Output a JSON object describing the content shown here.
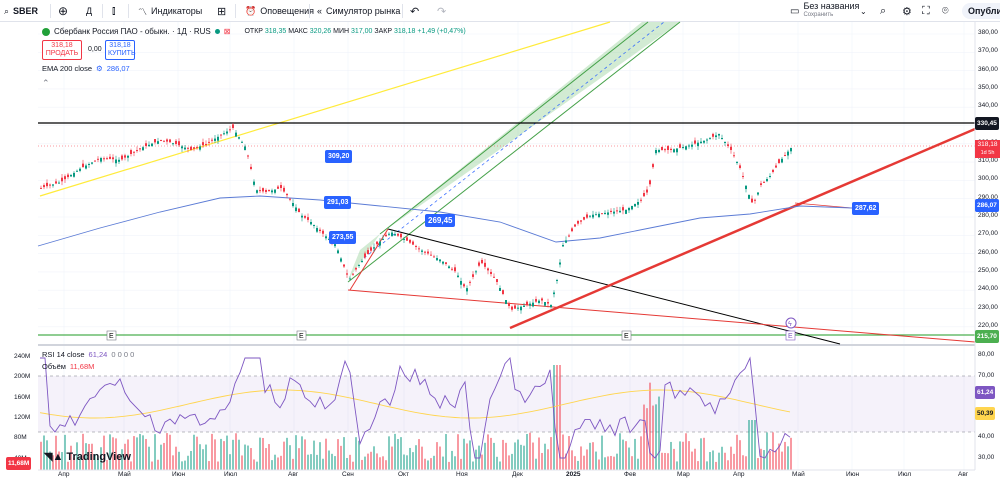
{
  "toolbar": {
    "symbol": "SBER",
    "interval": "Д",
    "indicators": "Индикаторы",
    "alerts": "Оповещения",
    "replay": "Симулятор рынка",
    "layout_name": "Без названия",
    "layout_saved": "Сохранить",
    "publish": "Опубликовать"
  },
  "legend": {
    "title": "Сбербанк Россия ПАО - обыкн. · 1Д · RUS",
    "open_label": "ОТКР",
    "open": "318,35",
    "high_label": "МАКС",
    "high": "320,26",
    "low_label": "МИН",
    "low": "317,00",
    "close_label": "ЗАКР",
    "close": "318,18",
    "change": "+1,49 (+0,47%)",
    "sell_price": "318,18",
    "sell_label": "ПРОДАТЬ",
    "spread": "0,00",
    "buy_price": "318,18",
    "buy_label": "КУПИТЬ",
    "ema_label": "EMA 200 close",
    "ema_value": "286,07"
  },
  "price_axis": {
    "ticks": [
      "380,00",
      "370,00",
      "360,00",
      "350,00",
      "340,00",
      "330,00",
      "320,00",
      "310,00",
      "300,00",
      "290,00",
      "280,00",
      "270,00",
      "260,00",
      "250,00",
      "240,00",
      "230,00",
      "220,00"
    ],
    "hline_label": "330,45",
    "last_price": "318,18",
    "last_time": "1d 5h",
    "ema_tag": "286,07",
    "support_tag": "215,70"
  },
  "annotations": {
    "a1": "309,20",
    "a2": "291,03",
    "a3": "273,55",
    "a4": "269,45",
    "a5": "287,62"
  },
  "rsi": {
    "label": "RSI 14 close",
    "value": "61,24",
    "extra": "0 0 0 0",
    "ticks": [
      "80,00",
      "70,00",
      "60,00",
      "50,00",
      "40,00",
      "30,00"
    ],
    "tag_value": "61,24",
    "tag_ma": "50,39"
  },
  "volume": {
    "label": "Объём",
    "value": "11,68M",
    "ticks": [
      "240M",
      "200M",
      "160M",
      "120M",
      "80M",
      "40M"
    ],
    "tag": "11,68M"
  },
  "time_axis": {
    "labels": [
      "Апр",
      "Май",
      "Июн",
      "Июл",
      "Авг",
      "Сен",
      "Окт",
      "Ноя",
      "Дек",
      "2025",
      "Фев",
      "Мар",
      "Апр",
      "Май",
      "Июн",
      "Июл",
      "Авг"
    ]
  },
  "brand": "TradingView",
  "colors": {
    "up": "#089981",
    "down": "#f23645",
    "ema": "#2962ff",
    "channel": "#4caf50",
    "support": "#e53935"
  }
}
